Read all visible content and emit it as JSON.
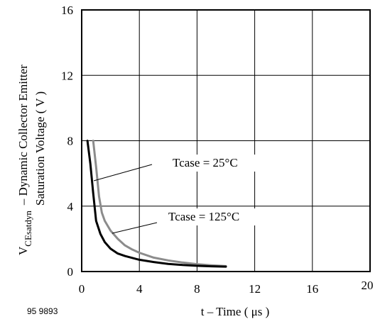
{
  "figure_code": "95 9893",
  "chart_data": {
    "type": "line",
    "title": "",
    "xlabel": "t – Time ( μs )",
    "ylabel": {
      "line1": "– Dynamic Collector Emitter",
      "line2": "Saturation Voltage ( V )",
      "symbol_main": "V",
      "symbol_sub": "CEsatdyn"
    },
    "xlim": [
      0,
      20
    ],
    "ylim": [
      0,
      16
    ],
    "xticks": [
      0,
      4,
      8,
      12,
      16,
      20
    ],
    "yticks": [
      0,
      4,
      8,
      12,
      16
    ],
    "grid": true,
    "series": [
      {
        "name": "Tcase = 25°C",
        "color": "#000000",
        "x": [
          0.4,
          0.6,
          0.8,
          1.0,
          1.3,
          1.6,
          2.0,
          2.5,
          3.0,
          4.0,
          5.0,
          6.0,
          7.0,
          8.0,
          9.0,
          10.0
        ],
        "y": [
          8.0,
          6.6,
          4.8,
          3.1,
          2.3,
          1.8,
          1.4,
          1.1,
          0.95,
          0.72,
          0.58,
          0.47,
          0.4,
          0.35,
          0.32,
          0.3
        ]
      },
      {
        "name": "Tcase = 125°C",
        "color": "#8c8c8c",
        "x": [
          0.8,
          1.0,
          1.2,
          1.4,
          1.6,
          2.0,
          2.5,
          3.0,
          3.5,
          4.0,
          5.0,
          6.0,
          7.0,
          8.0,
          9.0,
          10.0
        ],
        "y": [
          8.0,
          6.4,
          4.6,
          3.6,
          3.1,
          2.5,
          2.0,
          1.6,
          1.35,
          1.15,
          0.85,
          0.68,
          0.55,
          0.45,
          0.38,
          0.33
        ]
      }
    ]
  }
}
